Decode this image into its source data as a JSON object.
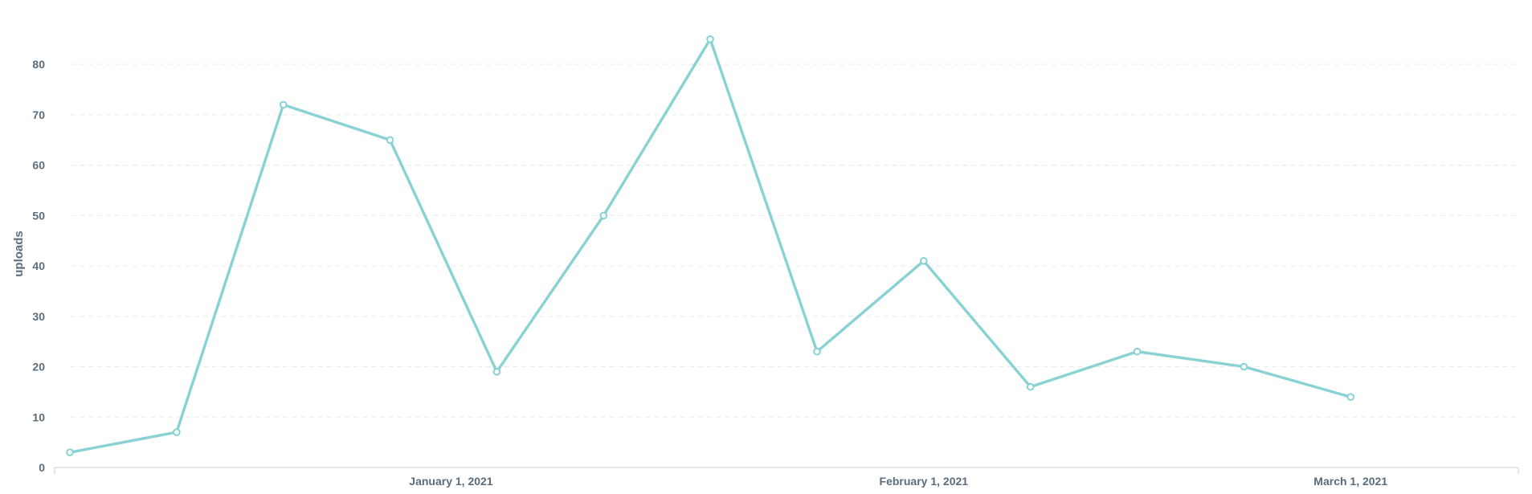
{
  "chart_data": {
    "type": "line",
    "title": "",
    "xlabel": "",
    "ylabel": "uploads",
    "ylim": [
      0,
      88
    ],
    "yticks": [
      0,
      10,
      20,
      30,
      40,
      50,
      60,
      70,
      80
    ],
    "xlim": [
      "2020-12-06",
      "2021-03-12"
    ],
    "xticks": [
      {
        "date": "2021-01-01",
        "label": "January 1, 2021"
      },
      {
        "date": "2021-02-01",
        "label": "February 1, 2021"
      },
      {
        "date": "2021-03-01",
        "label": "March 1, 2021"
      }
    ],
    "grid": true,
    "legend": "none",
    "series": [
      {
        "color": "#88d2d4",
        "points": [
          {
            "x": "2020-12-07",
            "y": 3
          },
          {
            "x": "2020-12-14",
            "y": 7
          },
          {
            "x": "2020-12-21",
            "y": 72
          },
          {
            "x": "2020-12-28",
            "y": 65
          },
          {
            "x": "2021-01-04",
            "y": 19
          },
          {
            "x": "2021-01-11",
            "y": 50
          },
          {
            "x": "2021-01-18",
            "y": 85
          },
          {
            "x": "2021-01-25",
            "y": 23
          },
          {
            "x": "2021-02-01",
            "y": 41
          },
          {
            "x": "2021-02-08",
            "y": 16
          },
          {
            "x": "2021-02-15",
            "y": 23
          },
          {
            "x": "2021-02-22",
            "y": 20
          },
          {
            "x": "2021-03-01",
            "y": 14
          }
        ]
      }
    ]
  }
}
